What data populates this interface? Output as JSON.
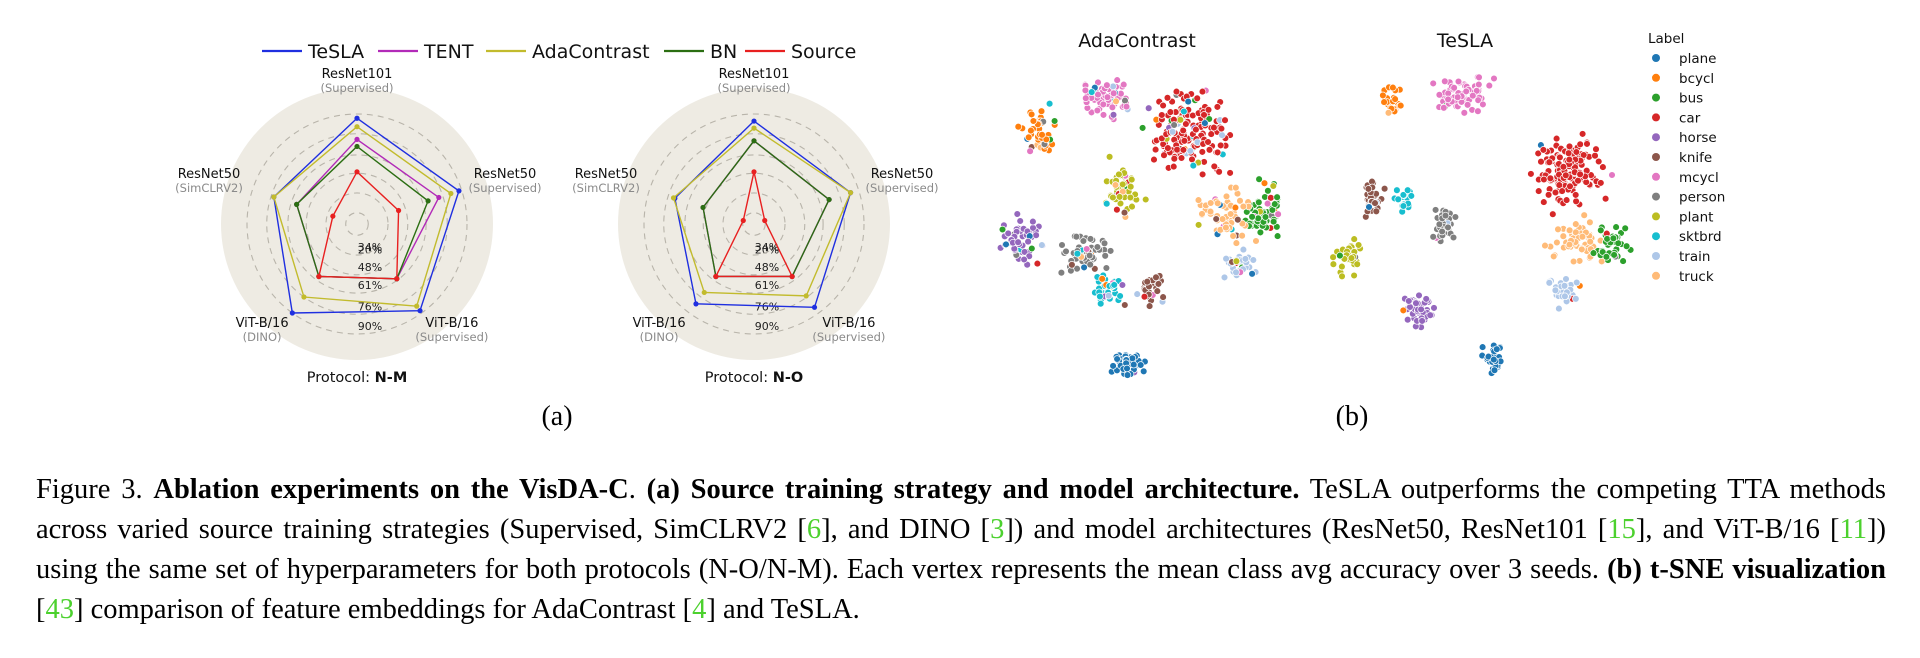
{
  "legend": [
    {
      "name": "TeSLA",
      "color": "#1f2fe0"
    },
    {
      "name": "TENT",
      "color": "#b22ab8"
    },
    {
      "name": "AdaContrast",
      "color": "#c2bb2d"
    },
    {
      "name": "BN",
      "color": "#2b6e12"
    },
    {
      "name": "Source",
      "color": "#e82020"
    }
  ],
  "radar_axes": [
    {
      "name": "ResNet101",
      "sub": "(Supervised)"
    },
    {
      "name": "ResNet50",
      "sub": "(Supervised)"
    },
    {
      "name": "ViT-B/16",
      "sub": "(Supervised)"
    },
    {
      "name": "ViT-B/16",
      "sub": "(DINO)"
    },
    {
      "name": "ResNet50",
      "sub": "(SimCLRV2)"
    }
  ],
  "radar_ticks": [
    "20%",
    "34%",
    "48%",
    "61%",
    "76%",
    "90%"
  ],
  "protocol_prefix": "Protocol: ",
  "panel_a_label": "(a)",
  "panel_b_label": "(b)",
  "chart_data": [
    {
      "type": "radar",
      "protocol": "N-M",
      "axes": [
        "ResNet101 (Supervised)",
        "ResNet50 (Supervised)",
        "ViT-B/16 (Supervised)",
        "ViT-B/16 (DINO)",
        "ResNet50 (SimCLRV2)"
      ],
      "scale": [
        20,
        90
      ],
      "series": [
        {
          "name": "TeSLA",
          "values": [
            87,
            88,
            88,
            90,
            74
          ]
        },
        {
          "name": "TENT",
          "values": [
            72,
            73,
            60,
            58,
            57
          ]
        },
        {
          "name": "AdaContrast",
          "values": [
            81,
            82,
            84,
            76,
            74
          ]
        },
        {
          "name": "BN",
          "values": [
            67,
            65,
            60,
            58,
            57
          ]
        },
        {
          "name": "Source",
          "values": [
            49,
            43,
            60,
            58,
            30
          ]
        }
      ]
    },
    {
      "type": "radar",
      "protocol": "N-O",
      "axes": [
        "ResNet101 (Supervised)",
        "ResNet50 (Supervised)",
        "ViT-B/16 (Supervised)",
        "ViT-B/16 (DINO)",
        "ResNet50 (SimCLRV2)"
      ],
      "scale": [
        20,
        90
      ],
      "series": [
        {
          "name": "TeSLA",
          "values": [
            85,
            84,
            85,
            82,
            71
          ]
        },
        {
          "name": "TENT",
          "values": [
            71,
            68,
            58,
            58,
            50
          ]
        },
        {
          "name": "AdaContrast",
          "values": [
            80,
            84,
            75,
            72,
            72
          ]
        },
        {
          "name": "BN",
          "values": [
            71,
            68,
            58,
            58,
            50
          ]
        },
        {
          "name": "Source",
          "values": [
            49,
            20,
            58,
            58,
            20
          ]
        }
      ]
    },
    {
      "type": "scatter",
      "title": "AdaContrast",
      "legend_title": "Label",
      "classes": [
        {
          "name": "plane",
          "color": "#1f77b4"
        },
        {
          "name": "bcycl",
          "color": "#ff7f0e"
        },
        {
          "name": "bus",
          "color": "#2ca02c"
        },
        {
          "name": "car",
          "color": "#d62728"
        },
        {
          "name": "horse",
          "color": "#9467bd"
        },
        {
          "name": "knife",
          "color": "#8c564b"
        },
        {
          "name": "mcycl",
          "color": "#e377c2"
        },
        {
          "name": "person",
          "color": "#7f7f7f"
        },
        {
          "name": "plant",
          "color": "#bcbd22"
        },
        {
          "name": "sktbrd",
          "color": "#17becf"
        },
        {
          "name": "train",
          "color": "#aec7e8"
        },
        {
          "name": "truck",
          "color": "#ffbb78"
        }
      ]
    },
    {
      "type": "scatter",
      "title": "TeSLA",
      "legend_title": "Label",
      "classes": [
        {
          "name": "plane",
          "color": "#1f77b4"
        },
        {
          "name": "bcycl",
          "color": "#ff7f0e"
        },
        {
          "name": "bus",
          "color": "#2ca02c"
        },
        {
          "name": "car",
          "color": "#d62728"
        },
        {
          "name": "horse",
          "color": "#9467bd"
        },
        {
          "name": "knife",
          "color": "#8c564b"
        },
        {
          "name": "mcycl",
          "color": "#e377c2"
        },
        {
          "name": "person",
          "color": "#7f7f7f"
        },
        {
          "name": "plant",
          "color": "#bcbd22"
        },
        {
          "name": "sktbrd",
          "color": "#17becf"
        },
        {
          "name": "train",
          "color": "#aec7e8"
        },
        {
          "name": "truck",
          "color": "#ffbb78"
        }
      ]
    }
  ],
  "caption": {
    "fig": "Figure 3.",
    "title": "Ablation experiments on the VisDA-C",
    "a_label": "(a) Source training strategy and model architecture.",
    "text1": "TeSLA outperforms the competing TTA methods across varied source training strategies (Supervised, SimCLRV2 [",
    "c6": "6",
    "text2": "], and DINO [",
    "c3": "3",
    "text3": "]) and model architectures (ResNet50, ResNet101 [",
    "c15": "15",
    "text4": "], and ViT-B/16 [",
    "c11": "11",
    "text5": "]) using the same set of hyperparameters for both protocols (N-O/N-M). Each vertex represents the mean class avg accuracy over 3 seeds.",
    "b_label": "(b) t-SNE visualization",
    "text6": "[",
    "c43": "43",
    "text7": "] comparison of feature embeddings for AdaContrast [",
    "c4": "4",
    "text8": "] and TeSLA."
  }
}
